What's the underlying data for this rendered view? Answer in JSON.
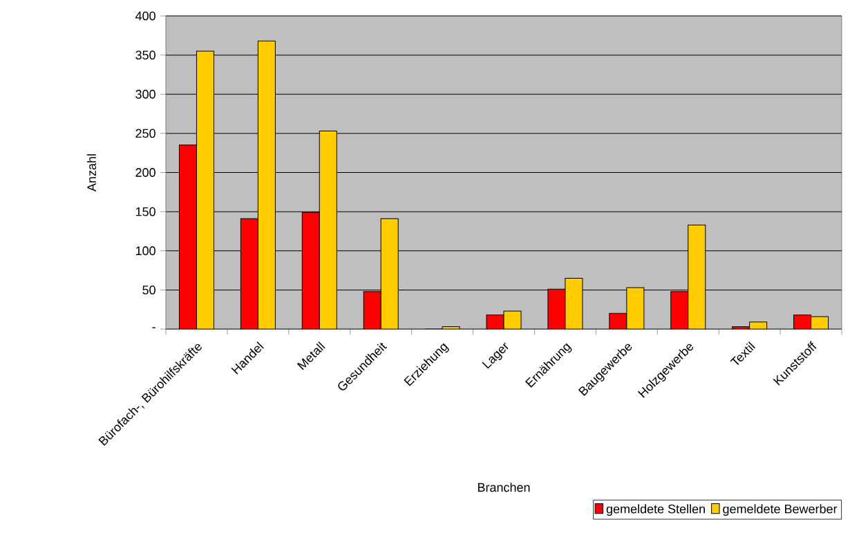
{
  "chart_data": {
    "type": "bar",
    "xlabel": "Branchen",
    "ylabel": "Anzahl",
    "categories": [
      "Bürofach-, Bürohilfskräfte",
      "Handel",
      "Metall",
      "Gesundheit",
      "Erziehung",
      "Lager",
      "Ernährung",
      "Baugewerbe",
      "Holzgewerbe",
      "Textil",
      "Kunststoff"
    ],
    "series": [
      {
        "name": "gemeldete Stellen",
        "color": "#ff0000",
        "values": [
          235,
          141,
          149,
          48,
          0,
          18,
          51,
          20,
          48,
          3,
          18
        ]
      },
      {
        "name": "gemeldete Bewerber",
        "color": "#ffcc00",
        "values": [
          355,
          368,
          253,
          141,
          3,
          23,
          65,
          53,
          133,
          9,
          16
        ]
      }
    ],
    "ylim": [
      0,
      400
    ],
    "yticks": [
      {
        "value": 0,
        "label": "-"
      },
      50,
      100,
      150,
      200,
      250,
      300,
      350,
      400
    ],
    "grid": "y",
    "legend": "bottom right"
  }
}
